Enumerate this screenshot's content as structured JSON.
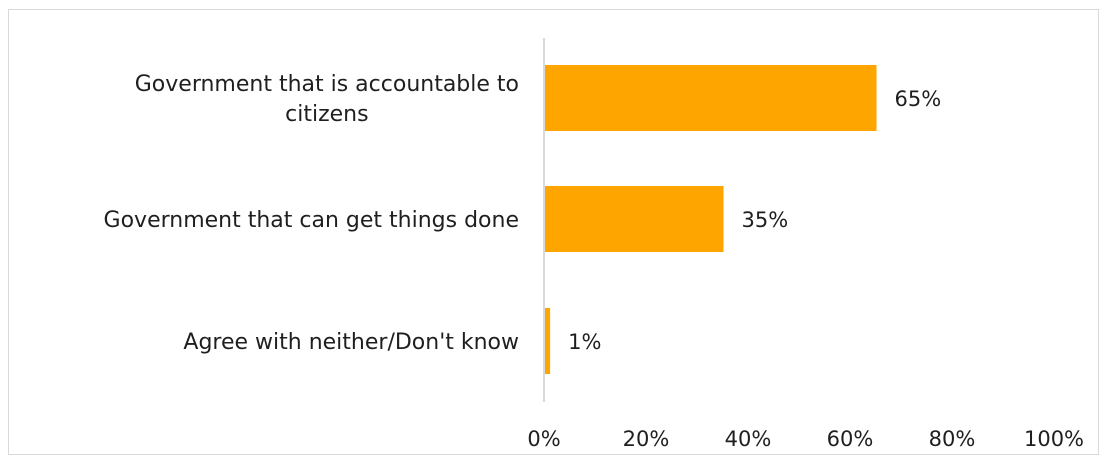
{
  "chart_data": {
    "type": "bar",
    "orientation": "horizontal",
    "title": "",
    "xlabel": "",
    "ylabel": "",
    "categories": [
      "Government that is accountable to citizens",
      "Government that can get things done",
      "Agree with neither/Don't know"
    ],
    "category_lines": [
      [
        "Government that is accountable to",
        "citizens"
      ],
      [
        "Government that can get things done"
      ],
      [
        "Agree with neither/Don't know"
      ]
    ],
    "values": [
      65,
      35,
      1
    ],
    "value_labels": [
      "65%",
      "35%",
      "1%"
    ],
    "xlim": [
      0,
      100
    ],
    "xticks": [
      0,
      20,
      40,
      60,
      80,
      100
    ],
    "xtick_labels": [
      "0%",
      "20%",
      "40%",
      "60%",
      "80%",
      "100%"
    ],
    "grid": false,
    "legend": "none",
    "colors": {
      "bar": "#FFA500",
      "axis": "#d9d9d9"
    }
  }
}
